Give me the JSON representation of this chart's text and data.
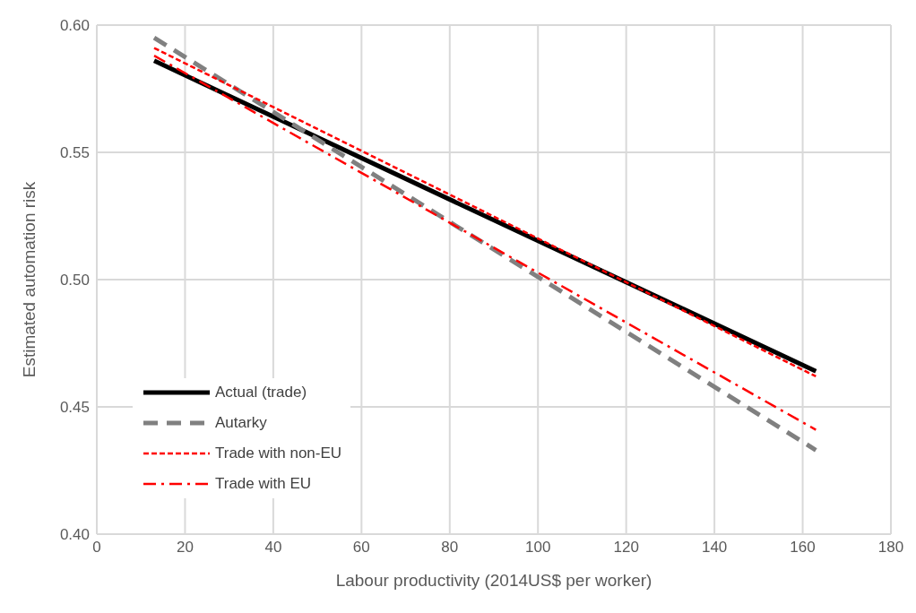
{
  "chart_data": {
    "type": "line",
    "xlabel": "Labour productivity (2014US$ per worker)",
    "ylabel": "Estimated automation risk",
    "x": [
      13,
      163
    ],
    "series": [
      {
        "name": "Actual (trade)",
        "color": "#000000",
        "line_style": "solid",
        "values": [
          0.586,
          0.464
        ]
      },
      {
        "name": "Autarky",
        "color": "#808080",
        "line_style": "dashed",
        "values": [
          0.595,
          0.433
        ]
      },
      {
        "name": "Trade with non-EU",
        "color": "#ff0000",
        "line_style": "dotted",
        "values": [
          0.591,
          0.462
        ]
      },
      {
        "name": "Trade with EU",
        "color": "#ff0000",
        "line_style": "dashdot",
        "values": [
          0.588,
          0.441
        ]
      }
    ],
    "xlim": [
      0,
      180
    ],
    "xticks": [
      0,
      20,
      40,
      60,
      80,
      100,
      120,
      140,
      160,
      180
    ],
    "ylim": [
      0.4,
      0.6
    ],
    "yticks": [
      {
        "value": 0.4,
        "label": "0.40"
      },
      {
        "value": 0.45,
        "label": "0.45"
      },
      {
        "value": 0.5,
        "label": "0.50"
      },
      {
        "value": 0.55,
        "label": "0.55"
      },
      {
        "value": 0.6,
        "label": "0.60"
      }
    ],
    "grid": true,
    "legend": "bottom left",
    "marker": "none"
  }
}
